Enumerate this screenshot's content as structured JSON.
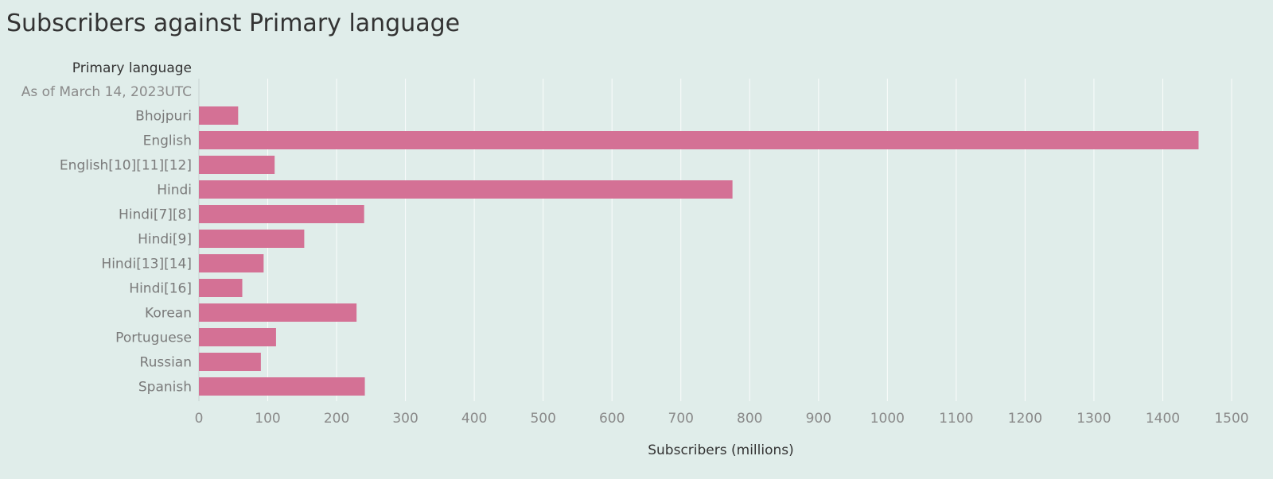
{
  "chart_data": {
    "type": "bar",
    "orientation": "horizontal",
    "title": "Subscribers against Primary language",
    "ylabel": "Primary language",
    "subheader": "As of March 14, 2023UTC",
    "xlabel": "Subscribers (millions)",
    "categories": [
      "Bhojpuri",
      "English",
      "English[10][11][12]",
      "Hindi",
      "Hindi[7][8]",
      "Hindi[9]",
      "Hindi[13][14]",
      "Hindi[16]",
      "Korean",
      "Portuguese",
      "Russian",
      "Spanish"
    ],
    "values": [
      57,
      1452,
      110,
      775,
      240,
      153,
      94,
      63,
      229,
      112,
      90,
      241
    ],
    "xlim": [
      0,
      1500
    ],
    "xticks": [
      0,
      100,
      200,
      300,
      400,
      500,
      600,
      700,
      800,
      900,
      1000,
      1100,
      1200,
      1300,
      1400,
      1500
    ],
    "grid": true,
    "colors": {
      "bar": "#d47195",
      "background": "#e0edea"
    }
  }
}
